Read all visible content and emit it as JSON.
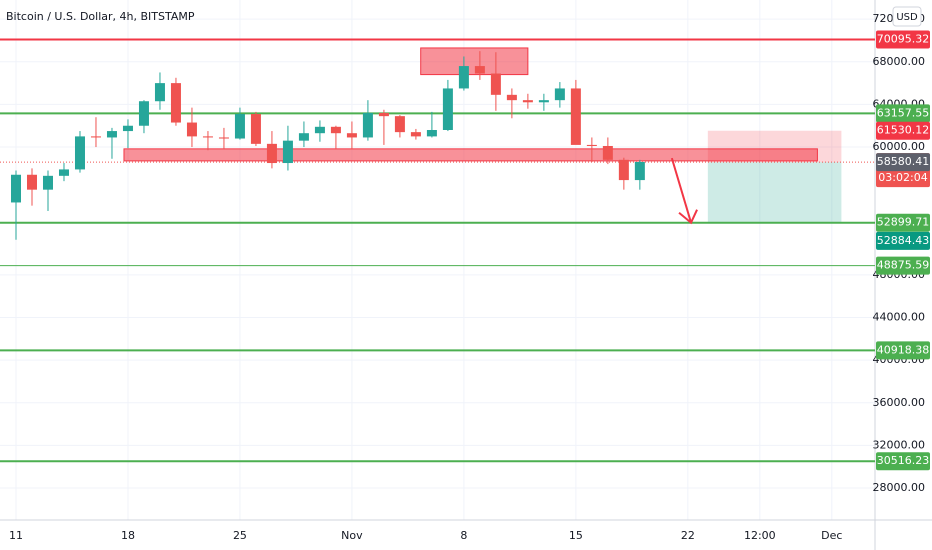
{
  "chart_data": {
    "type": "candlestick",
    "title": "Bitcoin / U.S. Dollar, 4h, BITSTAMP",
    "currency": "USD",
    "up_color": "#26a69a",
    "down_color": "#ef5350",
    "xlim": [
      -1,
      53.7
    ],
    "ylim": [
      25000,
      73800
    ],
    "xticks": [
      {
        "value": 0,
        "label": "11"
      },
      {
        "value": 7,
        "label": "18"
      },
      {
        "value": 14,
        "label": "25"
      },
      {
        "value": 21,
        "label": "Nov"
      },
      {
        "value": 28,
        "label": "8"
      },
      {
        "value": 35,
        "label": "15"
      },
      {
        "value": 42,
        "label": "22"
      },
      {
        "value": 46.5,
        "label": "12:00"
      },
      {
        "value": 51,
        "label": "Dec"
      }
    ],
    "yticks": [
      {
        "value": 72000,
        "label": "72000.00"
      },
      {
        "value": 68000,
        "label": "68000.00"
      },
      {
        "value": 64000,
        "label": "64000.00"
      },
      {
        "value": 60000,
        "label": "60000.00"
      },
      {
        "value": 48000,
        "label": "48000.00"
      },
      {
        "value": 44000,
        "label": "44000.00"
      },
      {
        "value": 40000,
        "label": "40000.00"
      },
      {
        "value": 36000,
        "label": "36000.00"
      },
      {
        "value": 32000,
        "label": "32000.00"
      },
      {
        "value": 28000,
        "label": "28000.00"
      }
    ],
    "grid": true,
    "candles": {
      "x": [
        0,
        1,
        2,
        3,
        4,
        5,
        6,
        7,
        8,
        9,
        10,
        11,
        12,
        13,
        14,
        15,
        16,
        17,
        18,
        19,
        20,
        21,
        22,
        23,
        24,
        25,
        26,
        27,
        28,
        29,
        30,
        31,
        32,
        33,
        34,
        35,
        36,
        37,
        38,
        39
      ],
      "open": [
        54800,
        57400,
        56000,
        57300,
        57900,
        61000,
        60900,
        61500,
        62000,
        64300,
        66000,
        62300,
        61000,
        60900,
        60800,
        63100,
        60300,
        58500,
        60600,
        61300,
        61900,
        61300,
        60900,
        63200,
        62900,
        61400,
        61000,
        61600,
        65500,
        67600,
        66900,
        64900,
        64400,
        64200,
        64400,
        65500,
        60200,
        60100,
        58800,
        56900
      ],
      "high": [
        57800,
        58000,
        57800,
        58500,
        61500,
        62800,
        61800,
        62600,
        64400,
        67000,
        66500,
        63700,
        61500,
        61800,
        63700,
        63300,
        61500,
        62000,
        62400,
        62500,
        62000,
        62400,
        64400,
        63500,
        63000,
        61700,
        63300,
        66300,
        68500,
        69000,
        68900,
        65500,
        65000,
        65000,
        66100,
        66300,
        60900,
        60900,
        59000,
        58800
      ],
      "low": [
        51300,
        54500,
        54000,
        56800,
        57600,
        60000,
        58900,
        59900,
        61300,
        63500,
        62000,
        60000,
        59700,
        59800,
        60700,
        60100,
        58000,
        57800,
        60000,
        60500,
        59800,
        59800,
        60600,
        60200,
        60900,
        60700,
        60900,
        61500,
        65300,
        66300,
        63400,
        62700,
        63600,
        63400,
        63700,
        63000,
        58600,
        58400,
        56000,
        56000
      ],
      "close": [
        57400,
        56000,
        57300,
        57900,
        61000,
        60900,
        61500,
        62000,
        64300,
        66000,
        62300,
        61000,
        60900,
        60800,
        63100,
        60300,
        58500,
        60600,
        61300,
        61900,
        61300,
        60900,
        63200,
        62900,
        61400,
        61000,
        61600,
        65500,
        67600,
        66900,
        64900,
        64400,
        64200,
        64400,
        65500,
        60200,
        60100,
        58800,
        56900,
        58600
      ]
    },
    "levels": [
      {
        "value": 70095.32,
        "color": "#f23645"
      },
      {
        "value": 63157.55,
        "color": "#4caf50"
      },
      {
        "value": 52899.71,
        "color": "#4caf50"
      },
      {
        "value": 48875.59,
        "color": "#4caf50"
      },
      {
        "value": 40918.38,
        "color": "#4caf50"
      },
      {
        "value": 30516.23,
        "color": "#4caf50"
      }
    ],
    "zones": [
      {
        "x": [
          25.3,
          32.0
        ],
        "y": [
          66800,
          69300
        ]
      },
      {
        "x": [
          6.75,
          50.1
        ],
        "y": [
          58700,
          59830
        ]
      }
    ],
    "position": {
      "x": [
        43.25,
        51.6
      ],
      "stop": 61530.12,
      "entry": 58585.49,
      "target": 52884.43,
      "bid": 58580.41
    },
    "countdown": "03:02:04"
  }
}
